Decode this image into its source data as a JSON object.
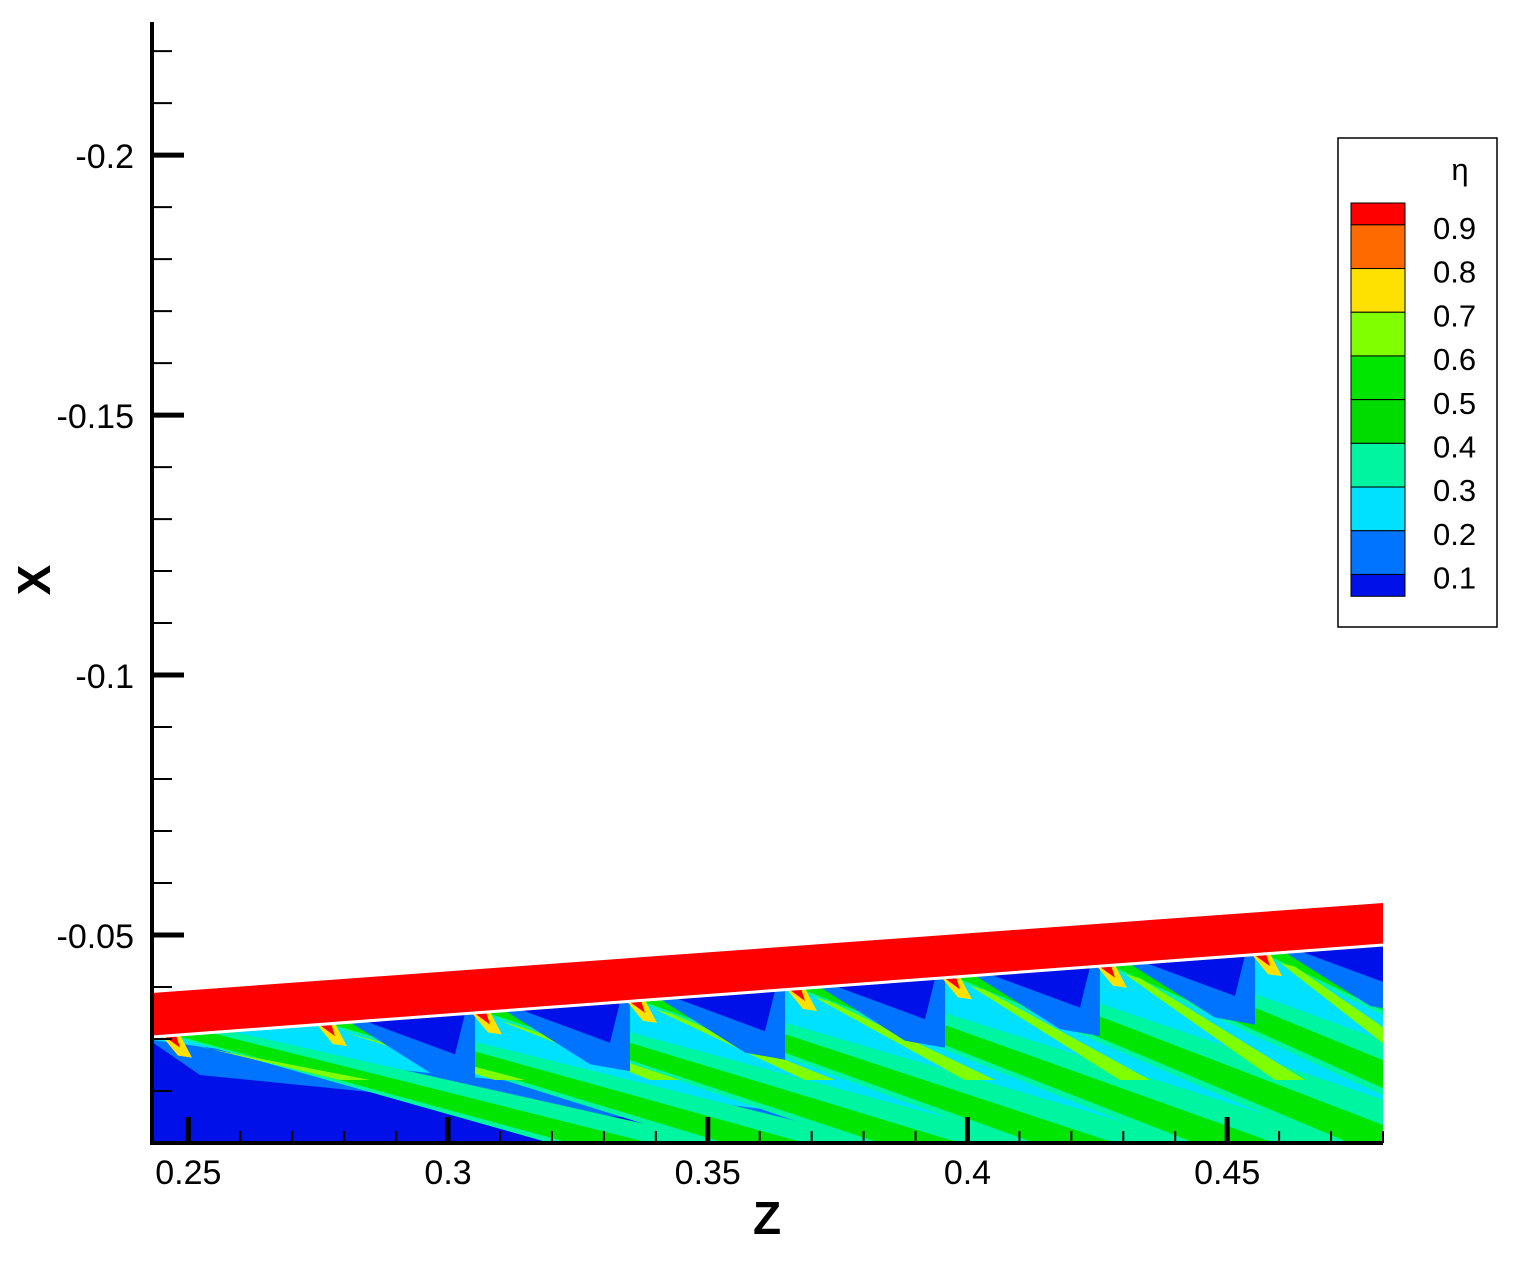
{
  "chart_data": {
    "type": "contour",
    "x_label": "Z",
    "y_label": "X",
    "xlim": [
      0.243,
      0.48
    ],
    "ylim": [
      -0.01,
      -0.2256
    ],
    "xticks": [
      0.25,
      0.3,
      0.35,
      0.4,
      0.45
    ],
    "yticks": [
      -0.2,
      -0.15,
      -0.1,
      -0.05
    ],
    "xminorticks": [
      0.25,
      0.26,
      0.27,
      0.28,
      0.29,
      0.3,
      0.31,
      0.32,
      0.33,
      0.34,
      0.35,
      0.36,
      0.37,
      0.38,
      0.39,
      0.4,
      0.41,
      0.42,
      0.43,
      0.44,
      0.45,
      0.46,
      0.47,
      0.48
    ],
    "yminorticks": [
      -0.22,
      -0.21,
      -0.2,
      -0.19,
      -0.18,
      -0.17,
      -0.16,
      -0.15,
      -0.14,
      -0.13,
      -0.12,
      -0.11,
      -0.1,
      -0.09,
      -0.08,
      -0.07,
      -0.06,
      -0.05,
      -0.04,
      -0.03,
      -0.02,
      -0.01
    ],
    "legend": {
      "title": "η",
      "position": "upper right",
      "levels": [
        0.9,
        0.8,
        0.7,
        0.6,
        0.5,
        0.4,
        0.3,
        0.2,
        0.1
      ],
      "colors": [
        "#ff0000",
        "#ff6a00",
        "#ffe100",
        "#80ff00",
        "#00e600",
        "#00dc00",
        "#00f5a0",
        "#00e0ff",
        "#0073ff",
        "#0010e8"
      ]
    }
  }
}
